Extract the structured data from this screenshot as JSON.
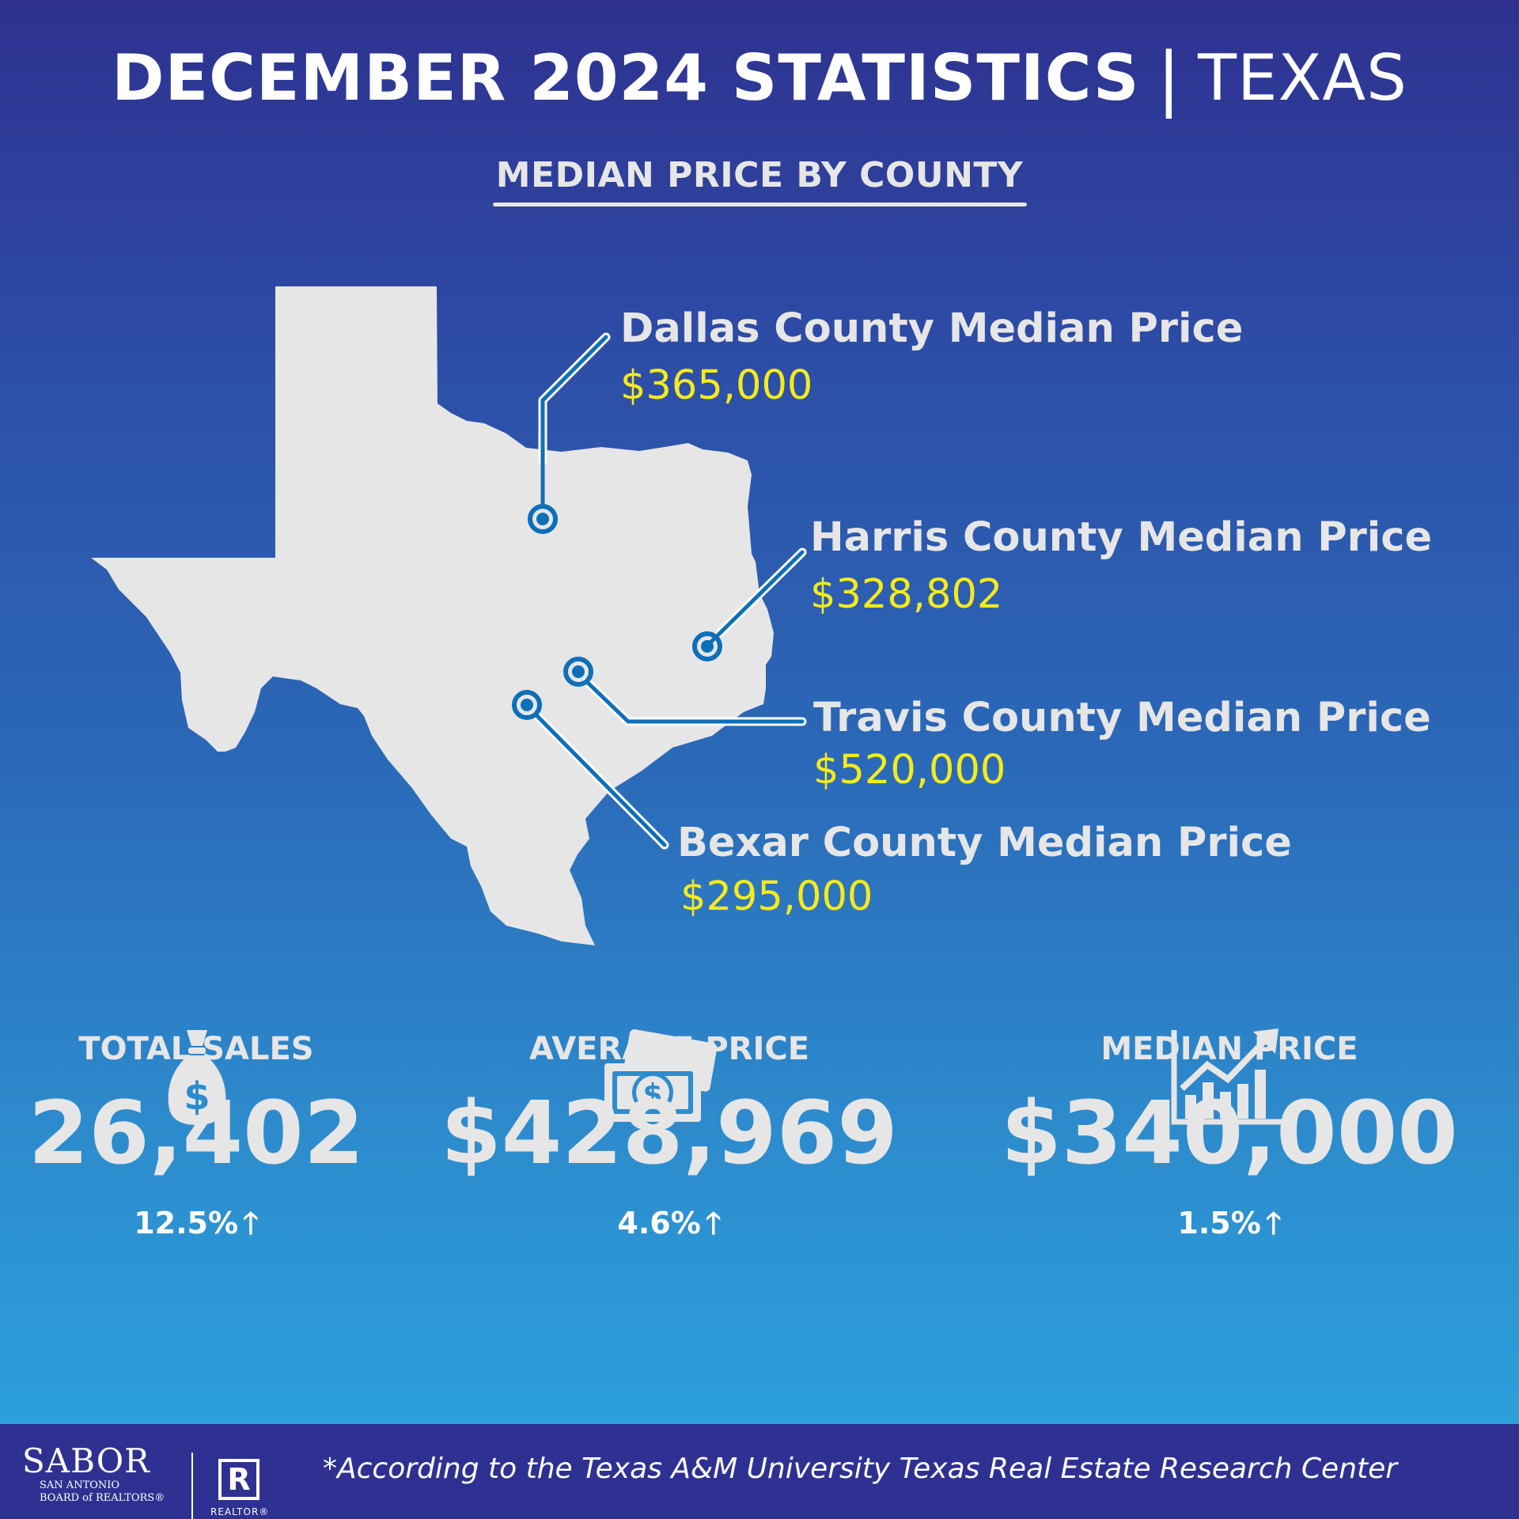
{
  "header": {
    "title": "DECEMBER 2024 STATISTICS",
    "separator": "|",
    "region": "TEXAS",
    "subtitle": "MEDIAN PRICE BY COUNTY"
  },
  "counties": [
    {
      "name": "Dallas County Median Price",
      "price": "$365,000"
    },
    {
      "name": "Harris County Median Price",
      "price": "$328,802"
    },
    {
      "name": "Travis County Median Price",
      "price": "$520,000"
    },
    {
      "name": "Bexar County Median Price",
      "price": "$295,000"
    }
  ],
  "stats": [
    {
      "icon": "money-bag-icon",
      "label": "TOTAL SALES",
      "value": "26,402",
      "change": "12.5%",
      "direction": "up"
    },
    {
      "icon": "cash-bills-icon",
      "label": "AVERAGE PRICE",
      "value": "$428,969",
      "change": "4.6%",
      "direction": "up"
    },
    {
      "icon": "growth-chart-icon",
      "label": "MEDIAN PRICE",
      "value": "$340,000",
      "change": "1.5%",
      "direction": "up"
    }
  ],
  "footer": {
    "logo_name": "SABOR",
    "logo_line1": "SAN ANTONIO",
    "logo_line2": "BOARD of REALTORS®",
    "realtor_mark": "R",
    "realtor_text": "REALTOR®",
    "footnote": "*According to the Texas A&M University Texas Real Estate Research Center"
  },
  "colors": {
    "background_top": "#2e3190",
    "background_bottom": "#2ba6e0",
    "map_fill": "#e6e6e6",
    "pin_line": "#0d6fb8",
    "price_text": "#f5ea1c",
    "footer_bg": "#2e3192"
  },
  "arrow_glyph": "🡑"
}
